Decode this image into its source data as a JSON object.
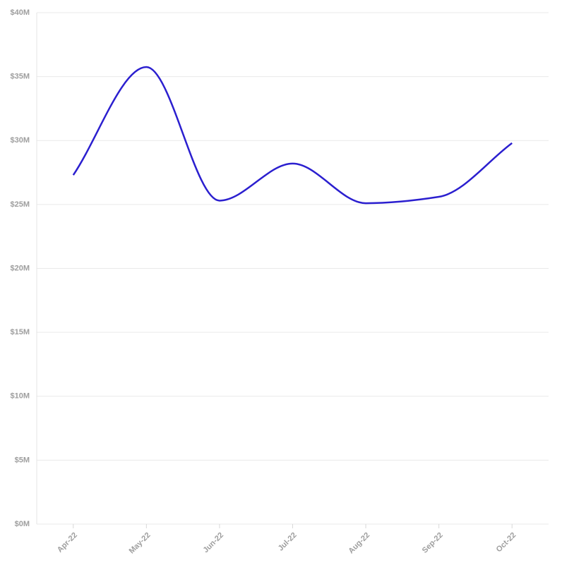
{
  "chart_data": {
    "type": "line",
    "categories": [
      "Apr-22",
      "May-22",
      "Jun-22",
      "Jul-22",
      "Aug-22",
      "Sep-22",
      "Oct-22"
    ],
    "series": [
      {
        "color": "#2b1fcf",
        "values": [
          27.3,
          35.75,
          25.3,
          28.2,
          25.1,
          25.6,
          29.8
        ]
      }
    ],
    "ylim": [
      0,
      40
    ],
    "yticks": [
      {
        "value": 0,
        "label": "$0M"
      },
      {
        "value": 5,
        "label": "$5M"
      },
      {
        "value": 10,
        "label": "$10M"
      },
      {
        "value": 15,
        "label": "$15M"
      },
      {
        "value": 20,
        "label": "$20M"
      },
      {
        "value": 25,
        "label": "$25M"
      },
      {
        "value": 30,
        "label": "$30M"
      },
      {
        "value": 35,
        "label": "$35M"
      },
      {
        "value": 40,
        "label": "$40M"
      }
    ],
    "grid": true,
    "smooth": true
  }
}
